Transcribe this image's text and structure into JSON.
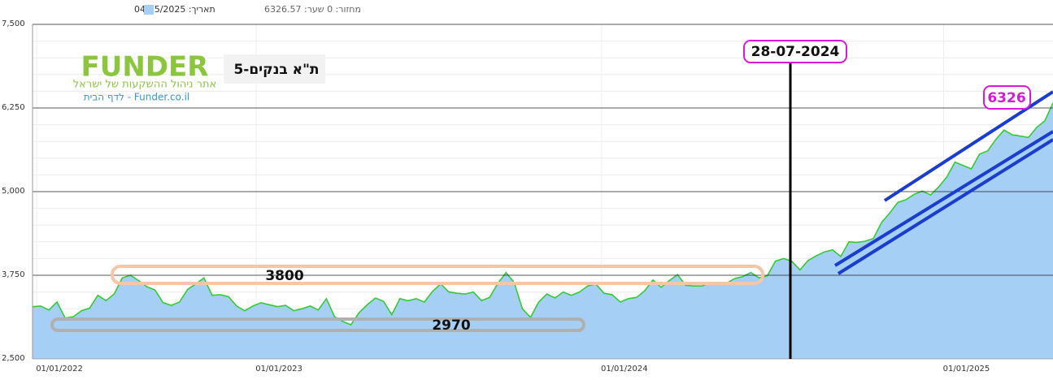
{
  "chart_data": {
    "type": "area",
    "title": "ת\"א בנקים-5",
    "date_text": "תאריך: 04/05/2025",
    "legend_text": "מחזור: 0 שער: 6326.57",
    "logo": {
      "brand": "FUNDER",
      "tagline": "אתר ניהול ההשקעות של ישראל",
      "link": "Funder.co.il - לדף הבית"
    },
    "annotations": {
      "resistance": "3800",
      "support": "2970",
      "date_marker": "28-07-2024",
      "last_value": "6326"
    },
    "fill_color": "#a6cff5",
    "line_color": "#33cc33",
    "values": [
      3280,
      3290,
      3230,
      3350,
      3110,
      3130,
      3220,
      3260,
      3450,
      3370,
      3470,
      3710,
      3750,
      3670,
      3580,
      3530,
      3340,
      3300,
      3350,
      3540,
      3620,
      3710,
      3450,
      3460,
      3430,
      3290,
      3220,
      3290,
      3340,
      3310,
      3280,
      3300,
      3220,
      3250,
      3290,
      3230,
      3400,
      3130,
      3060,
      3010,
      3190,
      3310,
      3410,
      3360,
      3160,
      3400,
      3370,
      3400,
      3350,
      3510,
      3620,
      3500,
      3480,
      3470,
      3500,
      3370,
      3420,
      3630,
      3790,
      3640,
      3250,
      3120,
      3350,
      3470,
      3410,
      3500,
      3450,
      3500,
      3590,
      3620,
      3480,
      3460,
      3350,
      3400,
      3420,
      3520,
      3680,
      3570,
      3670,
      3760,
      3600,
      3590,
      3590,
      3640,
      3630,
      3630,
      3700,
      3730,
      3790,
      3710,
      3740,
      3960,
      4000,
      3960,
      3830,
      3970,
      4040,
      4100,
      4130,
      4030,
      4250,
      4240,
      4260,
      4300,
      4540,
      4680,
      4840,
      4880,
      4960,
      5010,
      4950,
      5070,
      5220,
      5440,
      5390,
      5340,
      5560,
      5610,
      5780,
      5920,
      5850,
      5830,
      5810,
      5960,
      6060,
      6326.57
    ],
    "xlim": [
      0,
      125
    ],
    "xticks": [
      {
        "value": 0.5,
        "label": "01/01/2022"
      },
      {
        "value": 27.4,
        "label": "01/01/2023"
      },
      {
        "value": 69.7,
        "label": "01/01/2024"
      },
      {
        "value": 111.6,
        "label": "01/01/2025"
      }
    ],
    "ylim": [
      2500,
      7500
    ],
    "yticks": [
      {
        "value": 2500,
        "label": "2,500"
      },
      {
        "value": 3750,
        "label": "3,750"
      },
      {
        "value": 5000,
        "label": "5,000"
      },
      {
        "value": 6250,
        "label": "6,250"
      },
      {
        "value": 7500,
        "label": "7,500"
      }
    ],
    "grid": true
  }
}
